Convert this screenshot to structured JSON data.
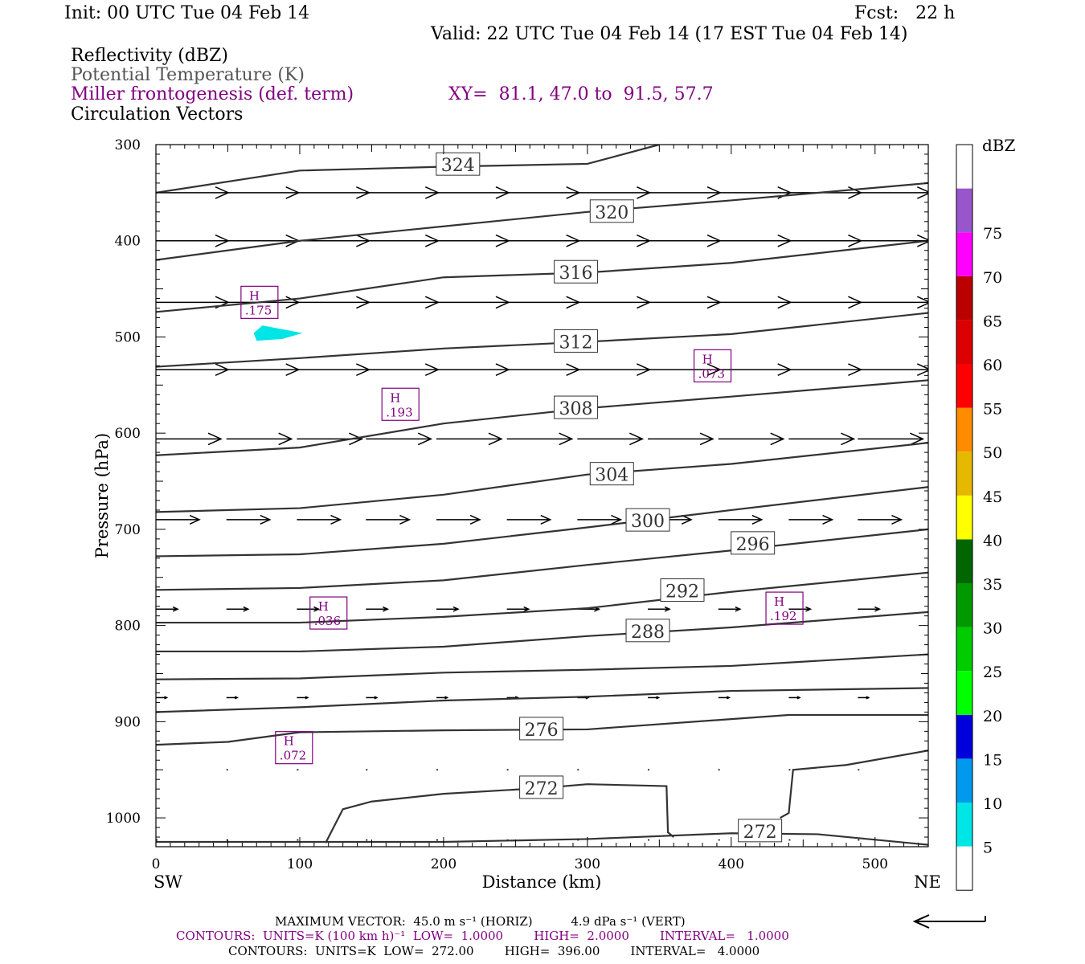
{
  "header": {
    "init": "Init: 00 UTC Tue 04 Feb 14",
    "fcst": "Fcst:   22 h",
    "valid": "Valid: 22 UTC Tue 04 Feb 14 (17 EST Tue 04 Feb 14)",
    "field1": "Reflectivity (dBZ)",
    "field2": "Potential Temperature (K)",
    "field3": "Miller frontogenesis (def. term)",
    "xy": "XY=  81.1, 47.0 to  91.5, 57.7",
    "field4": "Circulation Vectors"
  },
  "footer": {
    "maxvec": "MAXIMUM VECTOR:  45.0 m s⁻¹ (HORIZ)          4.9 dPa s⁻¹ (VERT)",
    "contours1": "CONTOURS:  UNITS=K (100 km h)⁻¹  LOW=  1.0000        HIGH=  2.0000        INTERVAL=   1.0000",
    "contours2": "CONTOURS:  UNITS=K  LOW=  272.00        HIGH=  396.00        INTERVAL=   4.0000"
  },
  "colors": {
    "theta": "#333333",
    "fronto": "#800080",
    "echo": "#00e5e5"
  },
  "chart_data": {
    "type": "cross-section",
    "xlabel": "Distance (km)",
    "ylabel": "Pressure (hPa)",
    "xlim": [
      0,
      537
    ],
    "ylim": [
      1030,
      300
    ],
    "y_scale": "linear, inverted",
    "x_ticks": [
      0,
      100,
      200,
      300,
      400,
      500
    ],
    "y_ticks": [
      300,
      400,
      500,
      600,
      700,
      800,
      900,
      1000
    ],
    "x_end_labels": {
      "left": "SW",
      "right": "NE"
    },
    "theta_contours": [
      {
        "value": 324,
        "label": true,
        "label_at": [
          210,
          321
        ],
        "points": [
          [
            0,
            350
          ],
          [
            100,
            327
          ],
          [
            200,
            323
          ],
          [
            300,
            320
          ],
          [
            350,
            300
          ]
        ]
      },
      {
        "value": 320,
        "label": true,
        "label_at": [
          317,
          370
        ],
        "points": [
          [
            0,
            420
          ],
          [
            100,
            400
          ],
          [
            200,
            385
          ],
          [
            300,
            370
          ],
          [
            400,
            358
          ],
          [
            537,
            340
          ]
        ]
      },
      {
        "value": 316,
        "label": true,
        "label_at": [
          292,
          433
        ],
        "points": [
          [
            0,
            474
          ],
          [
            100,
            460
          ],
          [
            200,
            438
          ],
          [
            300,
            433
          ],
          [
            400,
            423
          ],
          [
            537,
            400
          ]
        ]
      },
      {
        "value": 312,
        "label": true,
        "label_at": [
          292,
          505
        ],
        "points": [
          [
            0,
            531
          ],
          [
            100,
            522
          ],
          [
            200,
            512
          ],
          [
            300,
            505
          ],
          [
            400,
            497
          ],
          [
            537,
            475
          ]
        ]
      },
      {
        "value": 308,
        "label": true,
        "label_at": [
          292,
          574
        ],
        "points": [
          [
            0,
            623
          ],
          [
            100,
            615
          ],
          [
            200,
            590
          ],
          [
            300,
            574
          ],
          [
            400,
            562
          ],
          [
            537,
            545
          ]
        ]
      },
      {
        "value": 304,
        "label": true,
        "label_at": [
          317,
          643
        ],
        "points": [
          [
            0,
            682
          ],
          [
            100,
            678
          ],
          [
            200,
            664
          ],
          [
            300,
            643
          ],
          [
            400,
            632
          ],
          [
            537,
            610
          ]
        ]
      },
      {
        "value": 300,
        "label": true,
        "label_at": [
          342,
          691
        ],
        "points": [
          [
            0,
            728
          ],
          [
            100,
            726
          ],
          [
            200,
            715
          ],
          [
            300,
            698
          ],
          [
            400,
            680
          ],
          [
            537,
            656
          ]
        ]
      },
      {
        "value": 296,
        "label": true,
        "label_at": [
          415,
          715
        ],
        "points": [
          [
            0,
            763
          ],
          [
            100,
            761
          ],
          [
            200,
            753
          ],
          [
            300,
            737
          ],
          [
            400,
            722
          ],
          [
            537,
            700
          ]
        ]
      },
      {
        "value": 292,
        "label": true,
        "label_at": [
          366,
          764
        ],
        "points": [
          [
            0,
            797
          ],
          [
            100,
            797
          ],
          [
            200,
            791
          ],
          [
            300,
            782
          ],
          [
            400,
            765
          ],
          [
            537,
            745
          ]
        ]
      },
      {
        "value": 288,
        "label": true,
        "label_at": [
          342,
          806
        ],
        "points": [
          [
            0,
            827
          ],
          [
            100,
            827
          ],
          [
            200,
            822
          ],
          [
            300,
            811
          ],
          [
            400,
            802
          ],
          [
            537,
            786
          ]
        ]
      },
      {
        "value": 284,
        "label": false,
        "points": [
          [
            0,
            856
          ],
          [
            100,
            855
          ],
          [
            200,
            849
          ],
          [
            300,
            846
          ],
          [
            400,
            842
          ],
          [
            537,
            830
          ]
        ]
      },
      {
        "value": 280,
        "label": false,
        "points": [
          [
            0,
            890
          ],
          [
            100,
            885
          ],
          [
            200,
            878
          ],
          [
            300,
            874
          ],
          [
            400,
            868
          ],
          [
            537,
            865
          ]
        ]
      },
      {
        "value": 276,
        "label": true,
        "label_at": [
          268,
          908
        ],
        "points": [
          [
            0,
            924
          ],
          [
            50,
            921
          ],
          [
            100,
            911
          ],
          [
            200,
            909
          ],
          [
            300,
            908
          ],
          [
            440,
            893
          ],
          [
            537,
            893
          ]
        ]
      },
      {
        "value": 272,
        "label": true,
        "label_at": [
          268,
          969
        ],
        "points": [
          [
            118,
            1026
          ],
          [
            130,
            991
          ],
          [
            150,
            983
          ],
          [
            200,
            975
          ],
          [
            268,
            969
          ],
          [
            300,
            965
          ],
          [
            355,
            967
          ],
          [
            356,
            1015
          ],
          [
            360,
            1020
          ]
        ]
      },
      {
        "value": 272,
        "label": true,
        "label_at": [
          420,
          1014
        ],
        "points": [
          [
            0,
            1025
          ],
          [
            200,
            1025
          ],
          [
            300,
            1022
          ],
          [
            400,
            1016
          ],
          [
            460,
            1017
          ],
          [
            537,
            1028
          ]
        ]
      },
      {
        "value": 272,
        "label": false,
        "points": [
          [
            434,
            1000
          ],
          [
            440,
            995
          ],
          [
            443,
            950
          ],
          [
            480,
            945
          ],
          [
            537,
            930
          ]
        ]
      }
    ],
    "frontogenesis_highs": [
      {
        "label": "H",
        "value": ".175",
        "x": 72,
        "p": 464
      },
      {
        "label": "H",
        "value": ".073",
        "x": 387,
        "p": 530
      },
      {
        "label": "H",
        "value": ".193",
        "x": 170,
        "p": 570
      },
      {
        "label": "H",
        "value": ".036",
        "x": 120,
        "p": 787
      },
      {
        "label": "H",
        "value": ".192",
        "x": 437,
        "p": 782
      },
      {
        "label": "H",
        "value": ".072",
        "x": 96,
        "p": 927
      }
    ],
    "reflectivity_cells": [
      {
        "dBZ": "5",
        "points": [
          [
            68,
            496
          ],
          [
            74,
            488
          ],
          [
            102,
            496
          ],
          [
            88,
            502
          ],
          [
            70,
            504
          ]
        ]
      }
    ],
    "vector_rows": [
      {
        "p": 350,
        "u": 1.0,
        "w": 0.0
      },
      {
        "p": 400,
        "u": 1.0,
        "w": 0.0
      },
      {
        "p": 464,
        "u": 1.0,
        "w": 0.0
      },
      {
        "p": 534,
        "u": 1.0,
        "w": 0.0
      },
      {
        "p": 606,
        "u": 0.9,
        "w": 0.0
      },
      {
        "p": 690,
        "u": 0.6,
        "w": 0.0
      },
      {
        "p": 783,
        "u": 0.3,
        "w": 0.0
      },
      {
        "p": 875,
        "u": 0.15,
        "w": 0.0
      },
      {
        "p": 950,
        "u": 0.02,
        "w": 0.0
      },
      {
        "p": 1023,
        "u": 0.02,
        "w": 0.0
      }
    ],
    "vector_x": [
      0,
      49,
      98,
      146,
      195,
      244,
      293,
      342,
      391,
      440,
      488,
      537
    ],
    "colorbar": {
      "title": "dBZ",
      "labels": [
        "5",
        "10",
        "15",
        "20",
        "25",
        "30",
        "35",
        "40",
        "45",
        "50",
        "55",
        "60",
        "65",
        "70",
        "75"
      ],
      "colors": [
        "#ffffff",
        "#00e5e5",
        "#0099ee",
        "#0000dd",
        "#00ff00",
        "#00cc00",
        "#009900",
        "#006600",
        "#ffff00",
        "#e6b800",
        "#ff8c00",
        "#ff0000",
        "#dd0000",
        "#bb0000",
        "#ff00ff",
        "#9955cc",
        "#ffffff"
      ]
    },
    "max_vector_arrow": "reference"
  }
}
